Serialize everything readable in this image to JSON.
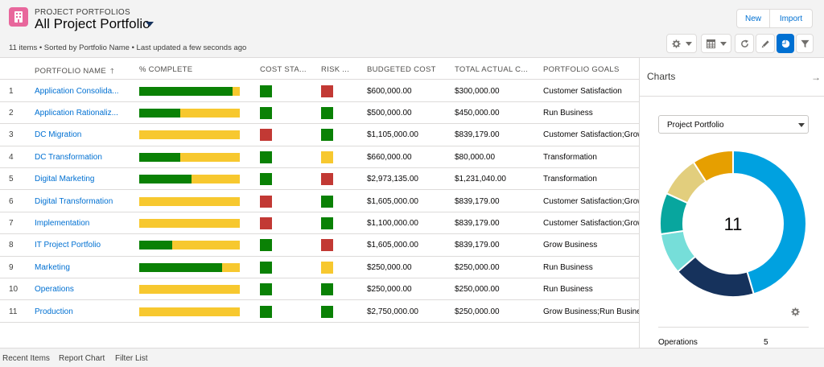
{
  "header": {
    "object_label": "PROJECT PORTFOLIOS",
    "list_title": "All Project Portfolio",
    "meta": "11 items • Sorted by Portfolio Name • Last updated a few seconds ago",
    "new_label": "New",
    "import_label": "Import",
    "tools": [
      {
        "icon": "gear-icon"
      },
      {
        "icon": "table-icon"
      },
      {
        "icon": "refresh-icon"
      },
      {
        "icon": "pencil-icon"
      },
      {
        "icon": "pie-chart-icon",
        "active": true
      },
      {
        "icon": "filter-icon"
      }
    ]
  },
  "table": {
    "columns": [
      "PORTFOLIO NAME",
      "% COMPLETE",
      "COST STA...",
      "RISK ...",
      "BUDGETED COST",
      "TOTAL ACTUAL C...",
      "PORTFOLIO GOALS"
    ],
    "rows": [
      {
        "num": "1",
        "name": "Application Consolida...",
        "complete": 0.93,
        "cost": "green",
        "risk": "red",
        "budget": "$600,000.00",
        "actual": "$300,000.00",
        "goals": "Customer Satisfaction"
      },
      {
        "num": "2",
        "name": "Application Rationaliz...",
        "complete": 0.41,
        "cost": "green",
        "risk": "green",
        "budget": "$500,000.00",
        "actual": "$450,000.00",
        "goals": "Run Business"
      },
      {
        "num": "3",
        "name": "DC Migration",
        "complete": 0.0,
        "cost": "red",
        "risk": "green",
        "budget": "$1,105,000.00",
        "actual": "$839,179.00",
        "goals": "Customer Satisfaction;Grow"
      },
      {
        "num": "4",
        "name": "DC Transformation",
        "complete": 0.41,
        "cost": "green",
        "risk": "yellow",
        "budget": "$660,000.00",
        "actual": "$80,000.00",
        "goals": "Transformation"
      },
      {
        "num": "5",
        "name": "Digital Marketing",
        "complete": 0.52,
        "cost": "green",
        "risk": "red",
        "budget": "$2,973,135.00",
        "actual": "$1,231,040.00",
        "goals": "Transformation"
      },
      {
        "num": "6",
        "name": "Digital Transformation",
        "complete": 0.0,
        "cost": "red",
        "risk": "green",
        "budget": "$1,605,000.00",
        "actual": "$839,179.00",
        "goals": "Customer Satisfaction;Grow"
      },
      {
        "num": "7",
        "name": "Implementation",
        "complete": 0.0,
        "cost": "red",
        "risk": "green",
        "budget": "$1,100,000.00",
        "actual": "$839,179.00",
        "goals": "Customer Satisfaction;Grow"
      },
      {
        "num": "8",
        "name": "IT Project Portfolio",
        "complete": 0.33,
        "cost": "green",
        "risk": "red",
        "budget": "$1,605,000.00",
        "actual": "$839,179.00",
        "goals": "Grow Business"
      },
      {
        "num": "9",
        "name": "Marketing",
        "complete": 0.82,
        "cost": "green",
        "risk": "yellow",
        "budget": "$250,000.00",
        "actual": "$250,000.00",
        "goals": "Run Business"
      },
      {
        "num": "10",
        "name": "Operations",
        "complete": 0.0,
        "cost": "green",
        "risk": "green",
        "budget": "$250,000.00",
        "actual": "$250,000.00",
        "goals": "Run Business"
      },
      {
        "num": "11",
        "name": "Production",
        "complete": 0.0,
        "cost": "green",
        "risk": "green",
        "budget": "$2,750,000.00",
        "actual": "$250,000.00",
        "goals": "Grow Business;Run Business"
      }
    ]
  },
  "charts": {
    "title": "Charts",
    "select_value": "Project Portfolio",
    "center_label": "11",
    "legend_label": "Operations",
    "legend_value": "5"
  },
  "chart_data": {
    "type": "pie",
    "center_total": 11,
    "segments": [
      {
        "value": 5,
        "color": "#00a1e0"
      },
      {
        "value": 2,
        "color": "#16325c"
      },
      {
        "value": 1,
        "color": "#76ded9"
      },
      {
        "value": 1,
        "color": "#08a69e"
      },
      {
        "value": 1,
        "color": "#e2ce7d"
      },
      {
        "value": 1,
        "color": "#e69f00"
      }
    ]
  },
  "colors": {
    "green": "#0a8105",
    "red": "#c23934",
    "yellow": "#f7c82f",
    "accent": "#0070d2"
  },
  "footer": {
    "items": [
      "Recent Items",
      "Report Chart",
      "Filter List"
    ]
  }
}
